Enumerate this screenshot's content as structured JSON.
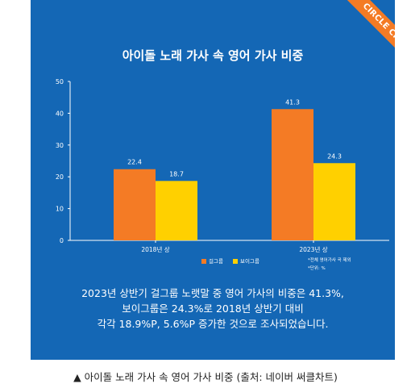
{
  "badge": "CIRCLE CHART",
  "title": "아이돌 노래 가사 속 영어 가사 비중",
  "chart_data": {
    "type": "bar",
    "categories": [
      "2018년 상",
      "2023년 상"
    ],
    "series": [
      {
        "name": "걸그룹",
        "values": [
          22.4,
          41.3
        ],
        "color": "#f47b25"
      },
      {
        "name": "보이그룹",
        "values": [
          18.7,
          24.3
        ],
        "color": "#ffd000"
      }
    ],
    "yticks": [
      0,
      10,
      20,
      30,
      40,
      50
    ],
    "ylim": [
      0,
      50
    ],
    "legend": "bottom-center"
  },
  "legend_labels": [
    "걸그룹",
    "보이그룹"
  ],
  "notes": [
    "*전체 영어가사 곡 제외",
    "*단위: %"
  ],
  "summary": [
    "2023년 상반기 걸그룹 노랫말 중 영어 가사의 비중은 41.3%,",
    "보이그룹은 24.3%로 2018년 상반기 대비",
    "각각 18.9%P, 5.6%P 증가한 것으로 조사되었습니다."
  ],
  "caption": "▲ 아이돌 노래 가사 속 영어 가사 비중 (출처: 네이버 써클차트)",
  "colors": {
    "background": "#1467b5",
    "axis": "#ffffff",
    "badge": "#f47b25"
  }
}
